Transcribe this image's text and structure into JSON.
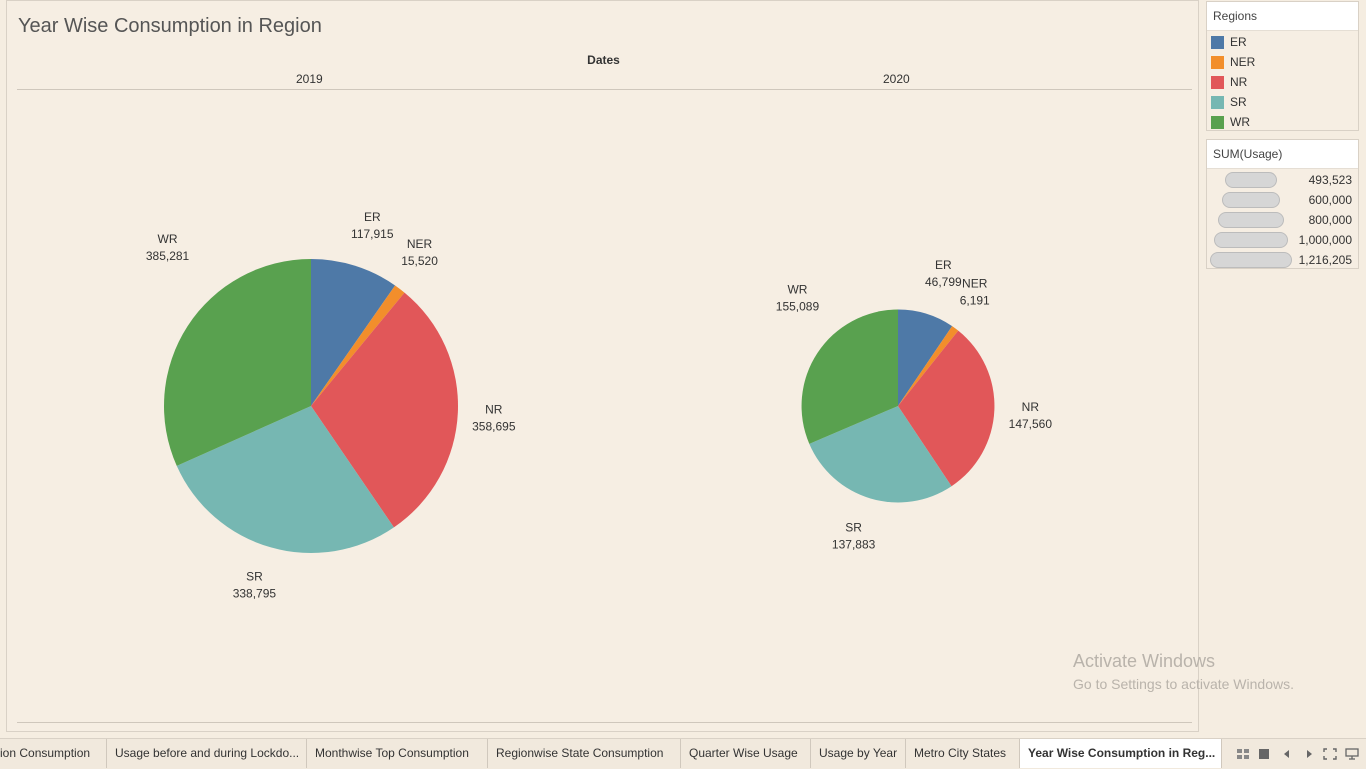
{
  "title": "Year Wise Consumption in Region",
  "column_header": "Dates",
  "chart_data": [
    {
      "type": "pie",
      "title": "",
      "panel_label": "2019",
      "categories": [
        "ER",
        "NER",
        "NR",
        "SR",
        "WR"
      ],
      "values": [
        117915,
        15520,
        358695,
        338795,
        385281
      ],
      "value_labels": [
        "117,915",
        "15,520",
        "358,695",
        "338,795",
        "385,281"
      ],
      "total": 1216206
    },
    {
      "type": "pie",
      "title": "",
      "panel_label": "2020",
      "categories": [
        "ER",
        "NER",
        "NR",
        "SR",
        "WR"
      ],
      "values": [
        46799,
        6191,
        147560,
        137883,
        155089
      ],
      "value_labels": [
        "46,799",
        "6,191",
        "147,560",
        "137,883",
        "155,089"
      ],
      "total": 493522
    }
  ],
  "colors": {
    "ER": "#4e79a7",
    "NER": "#f28e2b",
    "NR": "#e15759",
    "SR": "#76b7b2",
    "WR": "#59a14f"
  },
  "legend": {
    "title": "Regions",
    "items": [
      "ER",
      "NER",
      "NR",
      "SR",
      "WR"
    ]
  },
  "size_legend": {
    "title": "SUM(Usage)",
    "items": [
      "493,523",
      "600,000",
      "800,000",
      "1,000,000",
      "1,216,205"
    ],
    "values": [
      493523,
      600000,
      800000,
      1000000,
      1216205
    ]
  },
  "watermark": {
    "line1": "Activate Windows",
    "line2": "Go to Settings to activate Windows."
  },
  "tabs": [
    "ion Consumption",
    "Usage before and during Lockdo...",
    "Monthwise Top Consumption",
    "Regionwise State Consumption",
    "Quarter Wise Usage",
    "Usage by Year",
    "Metro City States",
    "Year Wise Consumption in Reg..."
  ],
  "active_tab": 7,
  "nav_icons": [
    "grid-view-icon",
    "filmstrip-icon",
    "prev-sheet-icon",
    "next-sheet-icon",
    "fullscreen-icon",
    "presentation-icon"
  ]
}
